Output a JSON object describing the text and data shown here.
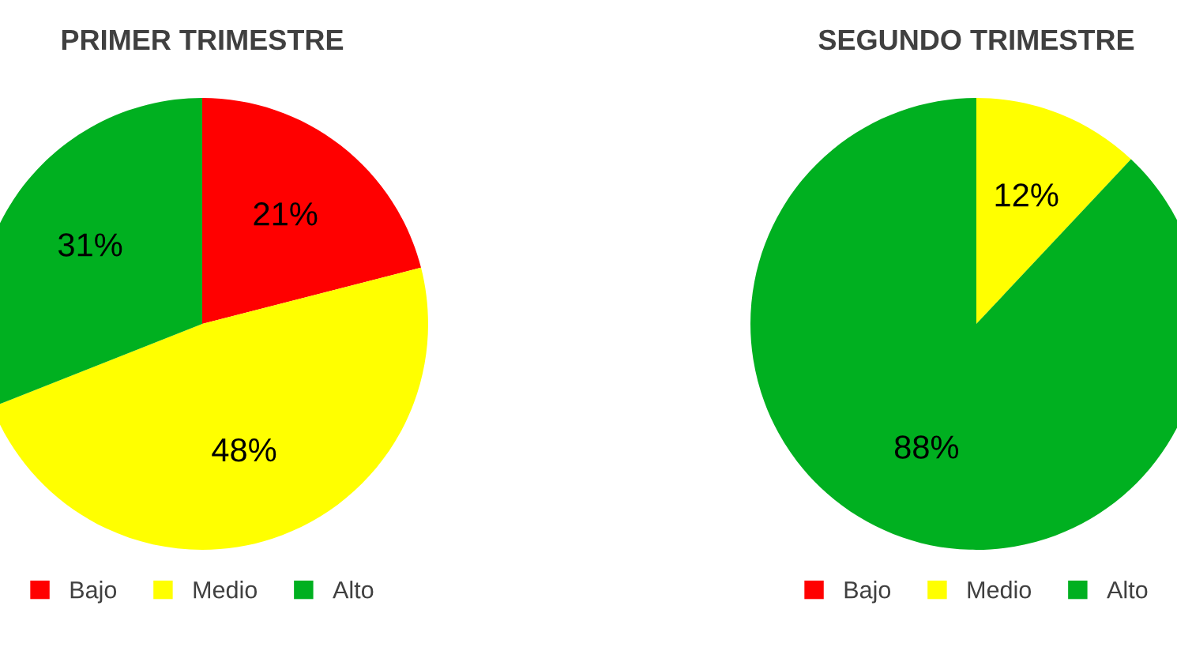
{
  "chart_data": [
    {
      "type": "pie",
      "title": "PRIMER TRIMESTRE",
      "categories": [
        "Bajo",
        "Medio",
        "Alto"
      ],
      "values": [
        21,
        48,
        31
      ],
      "colors": [
        "#ff0000",
        "#ffff00",
        "#00b020"
      ],
      "value_labels": [
        "21%",
        "48%",
        "31%"
      ],
      "legend": "bottom"
    },
    {
      "type": "pie",
      "title": "SEGUNDO TRIMESTRE",
      "categories": [
        "Bajo",
        "Medio",
        "Alto"
      ],
      "values": [
        0,
        12,
        88
      ],
      "colors": [
        "#ff0000",
        "#ffff00",
        "#00b020"
      ],
      "value_labels": [
        null,
        "12%",
        "88%"
      ],
      "legend": "bottom"
    }
  ]
}
